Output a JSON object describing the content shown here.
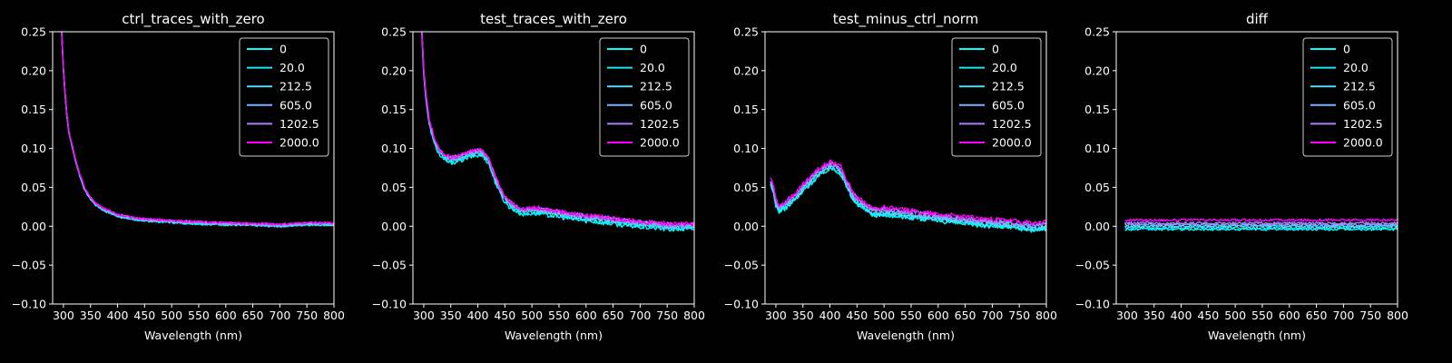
{
  "chart_data": {
    "type": "line",
    "xlabel": "Wavelength (nm)",
    "xlim": [
      280,
      800
    ],
    "ylim": [
      -0.1,
      0.25
    ],
    "xticks": [
      300,
      350,
      400,
      450,
      500,
      550,
      600,
      650,
      700,
      750,
      800
    ],
    "xtick_labels": [
      "300",
      "350",
      "400",
      "450",
      "500",
      "550",
      "600",
      "650",
      "700",
      "750",
      "800"
    ],
    "yticks": [
      -0.1,
      -0.05,
      0.0,
      0.05,
      0.1,
      0.15,
      0.2,
      0.25
    ],
    "ytick_labels": [
      "−0.10",
      "−0.05",
      "0.00",
      "0.05",
      "0.10",
      "0.15",
      "0.20",
      "0.25"
    ],
    "legend": {
      "location": "top-right",
      "entries": [
        "0",
        "20.0",
        "212.5",
        "605.0",
        "1202.5",
        "2000.0"
      ],
      "colors": [
        "#00ffff",
        "#14ebf5",
        "#55d9ff",
        "#79b4ff",
        "#b07cff",
        "#ff00ff"
      ]
    },
    "panels": [
      {
        "title": "ctrl_traces_with_zero",
        "base": [
          [
            296,
            0.26
          ],
          [
            300,
            0.2
          ],
          [
            305,
            0.15
          ],
          [
            310,
            0.12
          ],
          [
            320,
            0.09
          ],
          [
            330,
            0.065
          ],
          [
            340,
            0.045
          ],
          [
            350,
            0.035
          ],
          [
            360,
            0.027
          ],
          [
            375,
            0.02
          ],
          [
            400,
            0.013
          ],
          [
            425,
            0.009
          ],
          [
            450,
            0.007
          ],
          [
            475,
            0.006
          ],
          [
            500,
            0.005
          ],
          [
            525,
            0.004
          ],
          [
            550,
            0.003
          ],
          [
            600,
            0.002
          ],
          [
            650,
            0.001
          ],
          [
            700,
            0.0
          ],
          [
            725,
            0.001
          ],
          [
            750,
            0.002
          ],
          [
            775,
            0.002
          ],
          [
            800,
            0.001
          ]
        ],
        "offsets": [
          0,
          0.0005,
          0.001,
          0.0015,
          0.002,
          0.0025
        ],
        "noise": 0.0015
      },
      {
        "title": "test_traces_with_zero",
        "base": [
          [
            296,
            0.26
          ],
          [
            300,
            0.2
          ],
          [
            305,
            0.16
          ],
          [
            310,
            0.135
          ],
          [
            320,
            0.11
          ],
          [
            330,
            0.095
          ],
          [
            340,
            0.088
          ],
          [
            350,
            0.086
          ],
          [
            360,
            0.087
          ],
          [
            375,
            0.09
          ],
          [
            390,
            0.094
          ],
          [
            400,
            0.095
          ],
          [
            410,
            0.094
          ],
          [
            420,
            0.085
          ],
          [
            430,
            0.065
          ],
          [
            440,
            0.048
          ],
          [
            450,
            0.035
          ],
          [
            460,
            0.028
          ],
          [
            470,
            0.024
          ],
          [
            480,
            0.02
          ],
          [
            490,
            0.019
          ],
          [
            500,
            0.021
          ],
          [
            525,
            0.019
          ],
          [
            550,
            0.016
          ],
          [
            575,
            0.013
          ],
          [
            600,
            0.011
          ],
          [
            625,
            0.009
          ],
          [
            650,
            0.007
          ],
          [
            675,
            0.005
          ],
          [
            700,
            0.003
          ],
          [
            725,
            0.002
          ],
          [
            750,
            0.0
          ],
          [
            775,
            0.0
          ],
          [
            800,
            0.0
          ]
        ],
        "offsets": [
          -0.004,
          -0.002,
          0.0,
          0.001,
          0.002,
          0.003
        ],
        "noise": 0.003
      },
      {
        "title": "test_minus_ctrl_norm",
        "base": [
          [
            290,
            0.055
          ],
          [
            296,
            0.045
          ],
          [
            300,
            0.03
          ],
          [
            305,
            0.022
          ],
          [
            315,
            0.025
          ],
          [
            325,
            0.03
          ],
          [
            340,
            0.04
          ],
          [
            360,
            0.055
          ],
          [
            375,
            0.065
          ],
          [
            390,
            0.073
          ],
          [
            400,
            0.077
          ],
          [
            410,
            0.076
          ],
          [
            420,
            0.07
          ],
          [
            430,
            0.055
          ],
          [
            440,
            0.04
          ],
          [
            450,
            0.032
          ],
          [
            460,
            0.027
          ],
          [
            470,
            0.022
          ],
          [
            480,
            0.017
          ],
          [
            490,
            0.017
          ],
          [
            500,
            0.018
          ],
          [
            525,
            0.016
          ],
          [
            550,
            0.014
          ],
          [
            575,
            0.012
          ],
          [
            600,
            0.01
          ],
          [
            625,
            0.008
          ],
          [
            650,
            0.006
          ],
          [
            675,
            0.004
          ],
          [
            700,
            0.003
          ],
          [
            725,
            0.002
          ],
          [
            750,
            0.0
          ],
          [
            775,
            -0.002
          ],
          [
            800,
            0.0
          ]
        ],
        "offsets": [
          -0.003,
          -0.002,
          0.0,
          0.002,
          0.004,
          0.006
        ],
        "noise": 0.003
      },
      {
        "title": "diff",
        "base": [
          [
            296,
            0.0
          ],
          [
            800,
            0.0
          ]
        ],
        "offsets": [
          -0.004,
          -0.002,
          0.0,
          0.002,
          0.004,
          0.008
        ],
        "noise": 0.0015
      }
    ]
  }
}
